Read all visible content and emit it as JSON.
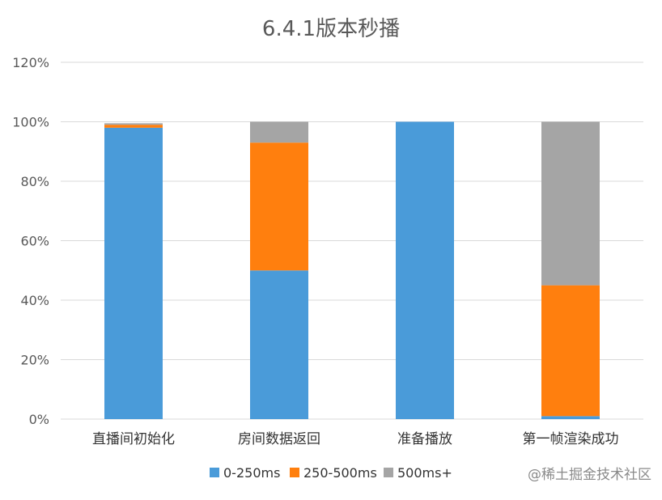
{
  "chart_data": {
    "type": "bar",
    "stacked": true,
    "title": "6.4.1版本秒播",
    "categories": [
      "直播间初始化",
      "房间数据返回",
      "准备播放",
      "第一帧渲染成功"
    ],
    "series": [
      {
        "name": "0-250ms",
        "color": "#4a9bd9",
        "values": [
          98,
          50,
          100,
          1
        ]
      },
      {
        "name": "250-500ms",
        "color": "#ff7f0e",
        "values": [
          1,
          43,
          0,
          44
        ]
      },
      {
        "name": "500ms+",
        "color": "#a5a5a5",
        "values": [
          0.5,
          7,
          0,
          55
        ]
      }
    ],
    "yticks": [
      "0%",
      "20%",
      "40%",
      "60%",
      "80%",
      "100%",
      "120%"
    ],
    "ylim": [
      0,
      120
    ],
    "grid": true,
    "legend_position": "bottom"
  },
  "watermark": "@稀土掘金技术社区"
}
